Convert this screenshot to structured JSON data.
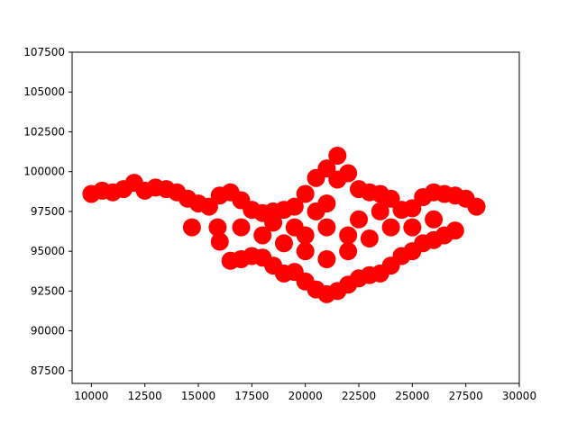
{
  "chart_data": {
    "type": "scatter",
    "title": "",
    "xlabel": "",
    "ylabel": "",
    "xlim": [
      9100,
      30000
    ],
    "ylim": [
      86700,
      107500
    ],
    "grid": false,
    "legend": "none",
    "x_ticks": [
      "10000",
      "12500",
      "15000",
      "17500",
      "20000",
      "22500",
      "25000",
      "27500",
      "30000"
    ],
    "y_ticks": [
      "87500",
      "90000",
      "92500",
      "95000",
      "97500",
      "100000",
      "102500",
      "105000",
      "107500"
    ],
    "x_tick_values": [
      10000,
      12500,
      15000,
      17500,
      20000,
      22500,
      25000,
      27500,
      30000
    ],
    "y_tick_values": [
      87500,
      90000,
      92500,
      95000,
      97500,
      100000,
      102500,
      105000,
      107500
    ],
    "marker_color": "#ff0000",
    "series": [
      {
        "points": [
          [
            10000,
            98600
          ],
          [
            10500,
            98800
          ],
          [
            11000,
            98700
          ],
          [
            11500,
            98900
          ],
          [
            12000,
            99300
          ],
          [
            12500,
            98800
          ],
          [
            13000,
            99000
          ],
          [
            13500,
            98900
          ],
          [
            14000,
            98700
          ],
          [
            14500,
            98300
          ],
          [
            15000,
            98000
          ],
          [
            15500,
            97800
          ],
          [
            16000,
            98500
          ],
          [
            16500,
            98700
          ],
          [
            17000,
            98200
          ],
          [
            17500,
            97600
          ],
          [
            18000,
            97400
          ],
          [
            18500,
            97500
          ],
          [
            19000,
            97600
          ],
          [
            19500,
            97800
          ],
          [
            20000,
            98600
          ],
          [
            20500,
            99600
          ],
          [
            21000,
            100200
          ],
          [
            21500,
            101000
          ],
          [
            22000,
            99900
          ],
          [
            22500,
            98900
          ],
          [
            23000,
            98700
          ],
          [
            23500,
            98600
          ],
          [
            24000,
            98300
          ],
          [
            24500,
            97600
          ],
          [
            25000,
            97700
          ],
          [
            25500,
            98400
          ],
          [
            26000,
            98700
          ],
          [
            26500,
            98600
          ],
          [
            27000,
            98500
          ],
          [
            27500,
            98300
          ],
          [
            28000,
            97800
          ],
          [
            14700,
            96500
          ],
          [
            15900,
            96500
          ],
          [
            16000,
            95600
          ],
          [
            16500,
            94400
          ],
          [
            17000,
            94500
          ],
          [
            17500,
            94700
          ],
          [
            18000,
            94600
          ],
          [
            18500,
            94100
          ],
          [
            19000,
            93600
          ],
          [
            19500,
            93700
          ],
          [
            20000,
            93100
          ],
          [
            20500,
            92600
          ],
          [
            21000,
            92300
          ],
          [
            21500,
            92500
          ],
          [
            22000,
            92900
          ],
          [
            22500,
            93300
          ],
          [
            23000,
            93500
          ],
          [
            23500,
            93600
          ],
          [
            24000,
            94100
          ],
          [
            24500,
            94700
          ],
          [
            25000,
            95000
          ],
          [
            25500,
            95500
          ],
          [
            26000,
            95700
          ],
          [
            26500,
            96000
          ],
          [
            27000,
            96300
          ],
          [
            17000,
            96500
          ],
          [
            18000,
            96000
          ],
          [
            19000,
            95500
          ],
          [
            20000,
            96000
          ],
          [
            21000,
            96500
          ],
          [
            22000,
            96000
          ],
          [
            23000,
            95800
          ],
          [
            24000,
            96500
          ],
          [
            25000,
            96500
          ],
          [
            26000,
            97000
          ],
          [
            20000,
            95000
          ],
          [
            21000,
            94500
          ],
          [
            22000,
            95000
          ],
          [
            21000,
            98000
          ],
          [
            20500,
            97500
          ],
          [
            22500,
            97000
          ],
          [
            19500,
            96500
          ],
          [
            23500,
            97500
          ],
          [
            21500,
            99500
          ],
          [
            18500,
            96800
          ]
        ]
      }
    ]
  }
}
